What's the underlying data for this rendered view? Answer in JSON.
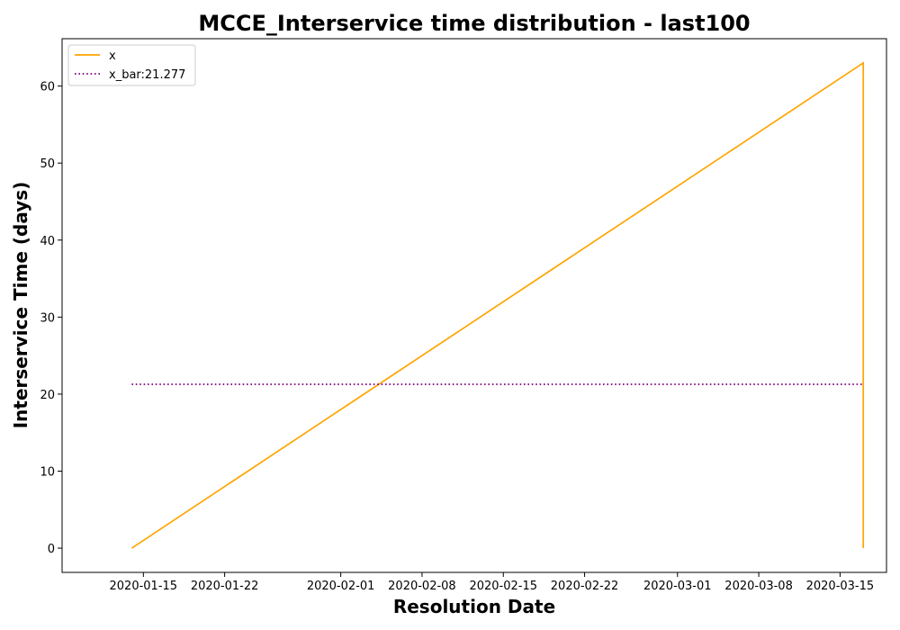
{
  "chart_data": {
    "type": "line",
    "title": "MCCE_Interservice time distribution - last100",
    "xlabel": "Resolution Date",
    "ylabel": "Interservice Time (days)",
    "xlim": [
      "2020-01-08",
      "2020-03-19"
    ],
    "ylim": [
      -3.15,
      66.15
    ],
    "x_ticks": [
      {
        "date": "2020-01-15",
        "label": "2020-01-15"
      },
      {
        "date": "2020-01-22",
        "label": "2020-01-22"
      },
      {
        "date": "2020-02-01",
        "label": "2020-02-01"
      },
      {
        "date": "2020-02-08",
        "label": "2020-02-08"
      },
      {
        "date": "2020-02-15",
        "label": "2020-02-15"
      },
      {
        "date": "2020-02-22",
        "label": "2020-02-22"
      },
      {
        "date": "2020-03-01",
        "label": "2020-03-01"
      },
      {
        "date": "2020-03-08",
        "label": "2020-03-08"
      },
      {
        "date": "2020-03-15",
        "label": "2020-03-15"
      }
    ],
    "y_ticks": [
      0,
      10,
      20,
      30,
      40,
      50,
      60
    ],
    "grid": false,
    "legend_position": "top-left",
    "series": [
      {
        "name": "x",
        "color": "#ffa500",
        "style": "solid",
        "points": [
          {
            "x": "2020-01-14",
            "y": 0
          },
          {
            "x": "2020-03-17",
            "y": 63
          },
          {
            "x": "2020-03-17",
            "y": 0
          }
        ]
      },
      {
        "name": "x_bar:21.277",
        "color": "#800080",
        "style": "dotted",
        "points": [
          {
            "x": "2020-01-14",
            "y": 21.277
          },
          {
            "x": "2020-03-17",
            "y": 21.277
          }
        ]
      }
    ]
  }
}
